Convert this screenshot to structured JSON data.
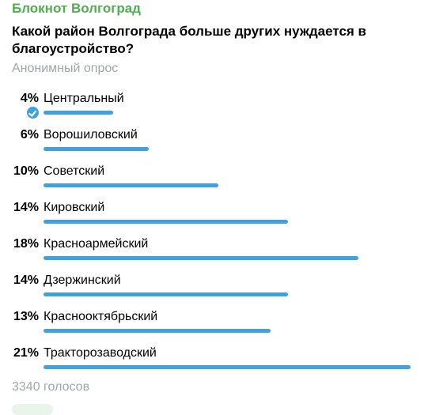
{
  "message": {
    "channel_name": "Блокнот Волгоград",
    "question": "Какой район Волгограда больше других нуждается в благоустройство?",
    "poll_type": "Анонимный опрос",
    "options": [
      {
        "percent": "4%",
        "label": "Центральный",
        "value": 4,
        "selected": true
      },
      {
        "percent": "6%",
        "label": "Ворошиловский",
        "value": 6,
        "selected": false
      },
      {
        "percent": "10%",
        "label": "Советский",
        "value": 10,
        "selected": false
      },
      {
        "percent": "14%",
        "label": "Кировский",
        "value": 14,
        "selected": false
      },
      {
        "percent": "18%",
        "label": "Красноармейский",
        "value": 18,
        "selected": false
      },
      {
        "percent": "14%",
        "label": "Дзержинский",
        "value": 14,
        "selected": false
      },
      {
        "percent": "13%",
        "label": "Краснооктябрьский",
        "value": 13,
        "selected": false
      },
      {
        "percent": "21%",
        "label": "Тракторозаводский",
        "value": 21,
        "selected": false
      }
    ],
    "votes_text": "3340 голосов"
  },
  "colors": {
    "channel_name": "#4fae4e",
    "accent": "#3fa1dd",
    "secondary_text": "#a0a6ab"
  },
  "icons": {
    "selected_option": "check-circle-icon"
  }
}
